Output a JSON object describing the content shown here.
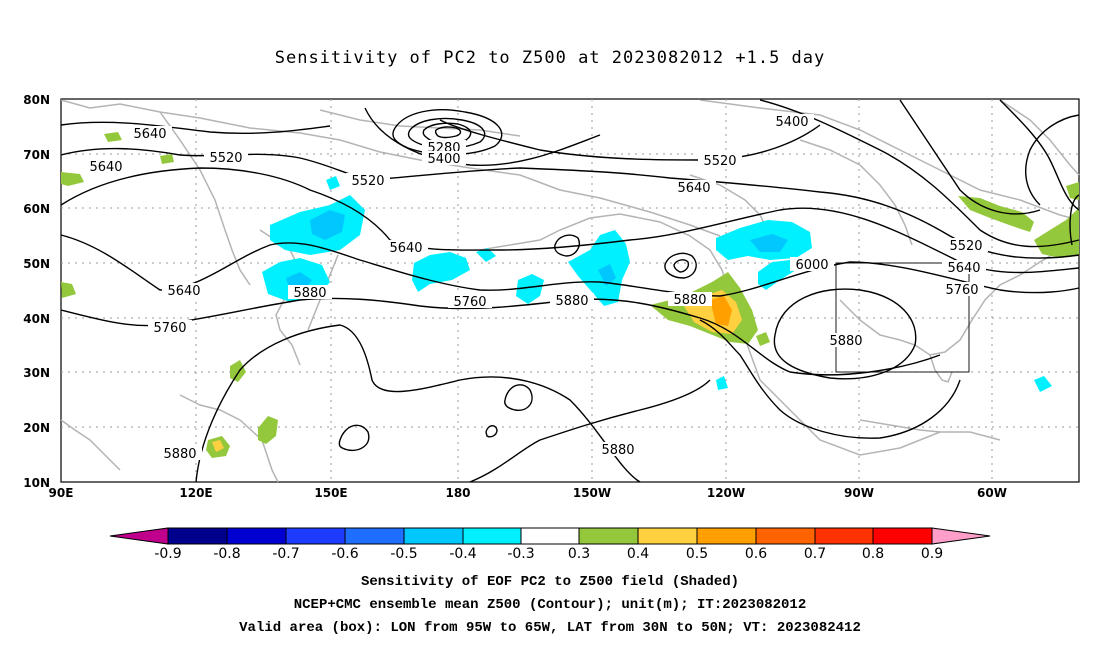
{
  "title": "Sensitivity of PC2 to Z500 at 2023082012 +1.5 day",
  "map": {
    "lat_labels": [
      "80N",
      "70N",
      "60N",
      "50N",
      "40N",
      "30N",
      "20N",
      "10N"
    ],
    "lon_labels": [
      "90E",
      "120E",
      "150E",
      "180",
      "150W",
      "120W",
      "90W",
      "60W"
    ],
    "contour_labels": [
      "5640",
      "5640",
      "5520",
      "5520",
      "5280",
      "5400",
      "5400",
      "5520",
      "5640",
      "5640",
      "5520",
      "5640",
      "5760",
      "5640",
      "5760",
      "5880",
      "5760",
      "5880",
      "5880",
      "6000",
      "5880",
      "5880",
      "5880"
    ]
  },
  "colorbar": {
    "labels": [
      "-0.9",
      "-0.8",
      "-0.7",
      "-0.6",
      "-0.5",
      "-0.4",
      "-0.3",
      "0.3",
      "0.4",
      "0.5",
      "0.6",
      "0.7",
      "0.8",
      "0.9"
    ],
    "colors": [
      "#c0008c",
      "#00008c",
      "#0000d0",
      "#1e3cff",
      "#1e6eff",
      "#00a0ff",
      "#00c8ff",
      "#00f0ff",
      "#ffffff",
      "#94c83c",
      "#ffd040",
      "#ffa000",
      "#ff6400",
      "#ff3200",
      "#ff0000",
      "#ff9ec8"
    ]
  },
  "footer": {
    "line1": "Sensitivity of EOF PC2 to Z500 field (Shaded)",
    "line2": "NCEP+CMC ensemble mean Z500 (Contour); unit(m); IT:2023082012",
    "line3": "Valid area (box): LON from 95W to 65W, LAT from 30N to 50N; VT: 2023082412"
  }
}
